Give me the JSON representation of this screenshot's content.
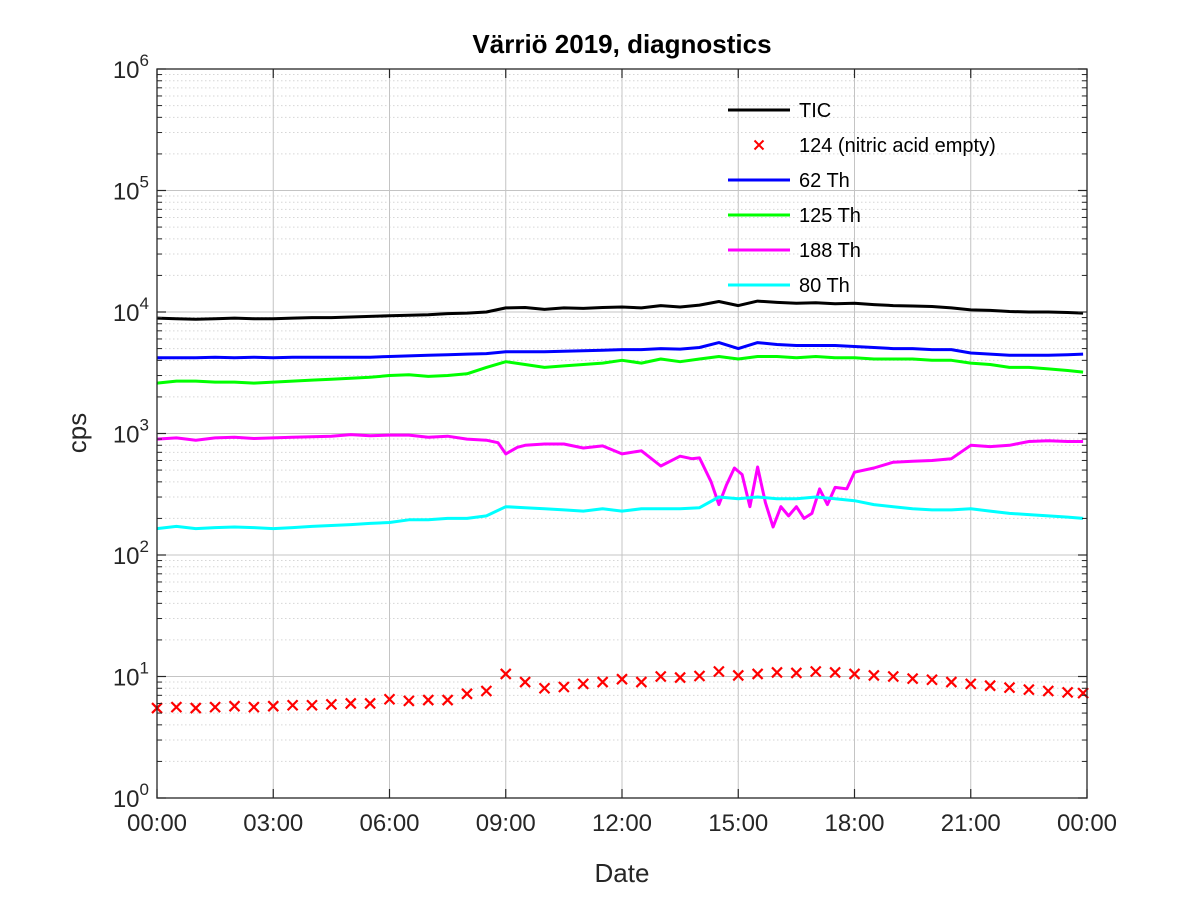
{
  "chart_data": {
    "type": "line",
    "title": "Värriö 2019, diagnostics",
    "xlabel": "Date",
    "ylabel": "cps",
    "y_scale": "log",
    "ylim": [
      1,
      1000000
    ],
    "xlim": [
      "00:00",
      "24:00"
    ],
    "x_unit": "hours",
    "xticks": [
      {
        "value": 0,
        "label": "00:00"
      },
      {
        "value": 3,
        "label": "03:00"
      },
      {
        "value": 6,
        "label": "06:00"
      },
      {
        "value": 9,
        "label": "09:00"
      },
      {
        "value": 12,
        "label": "12:00"
      },
      {
        "value": 15,
        "label": "15:00"
      },
      {
        "value": 18,
        "label": "18:00"
      },
      {
        "value": 21,
        "label": "21:00"
      },
      {
        "value": 24,
        "label": "00:00"
      }
    ],
    "yticks": [
      {
        "value": 1,
        "base": "10",
        "exp": "0"
      },
      {
        "value": 10,
        "base": "10",
        "exp": "1"
      },
      {
        "value": 100,
        "base": "10",
        "exp": "2"
      },
      {
        "value": 1000,
        "base": "10",
        "exp": "3"
      },
      {
        "value": 10000,
        "base": "10",
        "exp": "4"
      },
      {
        "value": 100000,
        "base": "10",
        "exp": "5"
      },
      {
        "value": 1000000,
        "base": "10",
        "exp": "6"
      }
    ],
    "grid": true,
    "minor_grid": true,
    "legend_position": "top-right",
    "series": [
      {
        "name": "TIC",
        "color": "#000000",
        "style": "line",
        "x": [
          0,
          0.5,
          1,
          1.5,
          2,
          2.5,
          3,
          3.5,
          4,
          4.5,
          5,
          5.5,
          6,
          6.5,
          7,
          7.5,
          8,
          8.5,
          9,
          9.5,
          10,
          10.5,
          11,
          11.5,
          12,
          12.5,
          13,
          13.5,
          14,
          14.5,
          15,
          15.5,
          16,
          16.5,
          17,
          17.5,
          18,
          18.5,
          19,
          19.5,
          20,
          20.5,
          21,
          21.5,
          22,
          22.5,
          23,
          23.5,
          23.9
        ],
        "y": [
          8900,
          8800,
          8700,
          8800,
          8900,
          8800,
          8800,
          8900,
          9000,
          9000,
          9100,
          9200,
          9300,
          9400,
          9500,
          9700,
          9800,
          10000,
          10800,
          10900,
          10500,
          10800,
          10700,
          10900,
          11000,
          10800,
          11300,
          11000,
          11400,
          12200,
          11300,
          12300,
          12000,
          11800,
          11900,
          11700,
          11800,
          11500,
          11300,
          11200,
          11100,
          10800,
          10400,
          10300,
          10100,
          10000,
          10000,
          9900,
          9800
        ]
      },
      {
        "name": "124 (nitric acid empty)",
        "color": "#ff0000",
        "style": "x",
        "x": [
          0,
          0.5,
          1,
          1.5,
          2,
          2.5,
          3,
          3.5,
          4,
          4.5,
          5,
          5.5,
          6,
          6.5,
          7,
          7.5,
          8,
          8.5,
          9,
          9.5,
          10,
          10.5,
          11,
          11.5,
          12,
          12.5,
          13,
          13.5,
          14,
          14.5,
          15,
          15.5,
          16,
          16.5,
          17,
          17.5,
          18,
          18.5,
          19,
          19.5,
          20,
          20.5,
          21,
          21.5,
          22,
          22.5,
          23,
          23.5,
          23.9
        ],
        "y": [
          5.5,
          5.6,
          5.5,
          5.6,
          5.7,
          5.6,
          5.7,
          5.8,
          5.8,
          5.9,
          6.0,
          6.0,
          6.5,
          6.3,
          6.4,
          6.4,
          7.2,
          7.6,
          10.5,
          9.0,
          8.0,
          8.2,
          8.7,
          9.0,
          9.5,
          9.0,
          10.0,
          9.8,
          10.1,
          11.0,
          10.2,
          10.5,
          10.8,
          10.7,
          11.0,
          10.8,
          10.5,
          10.2,
          10.0,
          9.6,
          9.4,
          9.0,
          8.7,
          8.4,
          8.1,
          7.8,
          7.6,
          7.4,
          7.3
        ]
      },
      {
        "name": "62 Th",
        "color": "#0000ff",
        "style": "line",
        "x": [
          0,
          0.5,
          1,
          1.5,
          2,
          2.5,
          3,
          3.5,
          4,
          4.5,
          5,
          5.5,
          6,
          6.5,
          7,
          7.5,
          8,
          8.5,
          9,
          9.5,
          10,
          10.5,
          11,
          11.5,
          12,
          12.5,
          13,
          13.5,
          14,
          14.5,
          15,
          15.5,
          16,
          16.5,
          17,
          17.5,
          18,
          18.5,
          19,
          19.5,
          20,
          20.5,
          21,
          21.5,
          22,
          22.5,
          23,
          23.5,
          23.9
        ],
        "y": [
          4200,
          4200,
          4200,
          4250,
          4200,
          4250,
          4200,
          4250,
          4250,
          4250,
          4250,
          4250,
          4300,
          4350,
          4400,
          4450,
          4500,
          4550,
          4700,
          4700,
          4700,
          4750,
          4800,
          4850,
          4900,
          4900,
          5000,
          4950,
          5100,
          5600,
          5000,
          5600,
          5400,
          5300,
          5300,
          5300,
          5200,
          5100,
          5000,
          5000,
          4900,
          4900,
          4600,
          4500,
          4400,
          4400,
          4400,
          4450,
          4500
        ]
      },
      {
        "name": "125 Th",
        "color": "#00ff00",
        "style": "line",
        "x": [
          0,
          0.5,
          1,
          1.5,
          2,
          2.5,
          3,
          3.5,
          4,
          4.5,
          5,
          5.5,
          6,
          6.5,
          7,
          7.5,
          8,
          8.5,
          9,
          9.5,
          10,
          10.5,
          11,
          11.5,
          12,
          12.5,
          13,
          13.5,
          14,
          14.5,
          15,
          15.5,
          16,
          16.5,
          17,
          17.5,
          18,
          18.5,
          19,
          19.5,
          20,
          20.5,
          21,
          21.5,
          22,
          22.5,
          23,
          23.5,
          23.9
        ],
        "y": [
          2600,
          2700,
          2700,
          2650,
          2650,
          2600,
          2650,
          2700,
          2750,
          2800,
          2850,
          2900,
          3000,
          3050,
          2950,
          3000,
          3100,
          3500,
          3900,
          3700,
          3500,
          3600,
          3700,
          3800,
          4000,
          3800,
          4100,
          3900,
          4100,
          4300,
          4100,
          4300,
          4300,
          4200,
          4300,
          4200,
          4200,
          4100,
          4100,
          4100,
          4000,
          4000,
          3800,
          3700,
          3500,
          3500,
          3400,
          3300,
          3200
        ]
      },
      {
        "name": "188 Th",
        "color": "#ff00ff",
        "style": "line",
        "x": [
          0,
          0.5,
          1,
          1.5,
          2,
          2.5,
          3,
          3.5,
          4,
          4.5,
          5,
          5.5,
          6,
          6.5,
          7,
          7.5,
          8,
          8.5,
          8.8,
          9,
          9.3,
          9.5,
          10,
          10.5,
          11,
          11.5,
          12,
          12.5,
          13,
          13.5,
          13.8,
          14,
          14.3,
          14.5,
          14.7,
          14.9,
          15.1,
          15.3,
          15.5,
          15.7,
          15.9,
          16.1,
          16.3,
          16.5,
          16.7,
          16.9,
          17.1,
          17.3,
          17.5,
          17.8,
          18,
          18.5,
          19,
          19.5,
          20,
          20.5,
          21,
          21.5,
          22,
          22.5,
          23,
          23.5,
          23.9
        ],
        "y": [
          900,
          920,
          880,
          920,
          930,
          910,
          920,
          930,
          940,
          950,
          980,
          960,
          970,
          970,
          930,
          950,
          900,
          880,
          840,
          680,
          770,
          800,
          820,
          820,
          760,
          790,
          680,
          720,
          540,
          650,
          620,
          630,
          400,
          260,
          380,
          520,
          460,
          250,
          530,
          270,
          170,
          250,
          210,
          250,
          200,
          220,
          350,
          260,
          360,
          350,
          480,
          520,
          580,
          590,
          600,
          620,
          800,
          780,
          800,
          860,
          870,
          860,
          860
        ]
      },
      {
        "name": "80 Th",
        "color": "#00ffff",
        "style": "line",
        "x": [
          0,
          0.5,
          1,
          1.5,
          2,
          2.5,
          3,
          3.5,
          4,
          4.5,
          5,
          5.5,
          6,
          6.5,
          7,
          7.5,
          8,
          8.5,
          9,
          9.5,
          10,
          10.5,
          11,
          11.5,
          12,
          12.5,
          13,
          13.5,
          14,
          14.5,
          15,
          15.5,
          16,
          16.5,
          17,
          17.5,
          18,
          18.5,
          19,
          19.5,
          20,
          20.5,
          21,
          21.5,
          22,
          22.5,
          23,
          23.5,
          23.9
        ],
        "y": [
          165,
          172,
          165,
          168,
          170,
          168,
          165,
          168,
          172,
          175,
          178,
          182,
          185,
          195,
          195,
          200,
          200,
          210,
          250,
          245,
          240,
          235,
          230,
          240,
          230,
          240,
          240,
          240,
          245,
          300,
          290,
          300,
          290,
          290,
          300,
          290,
          280,
          260,
          250,
          240,
          235,
          235,
          240,
          230,
          220,
          215,
          210,
          205,
          200
        ]
      }
    ]
  }
}
